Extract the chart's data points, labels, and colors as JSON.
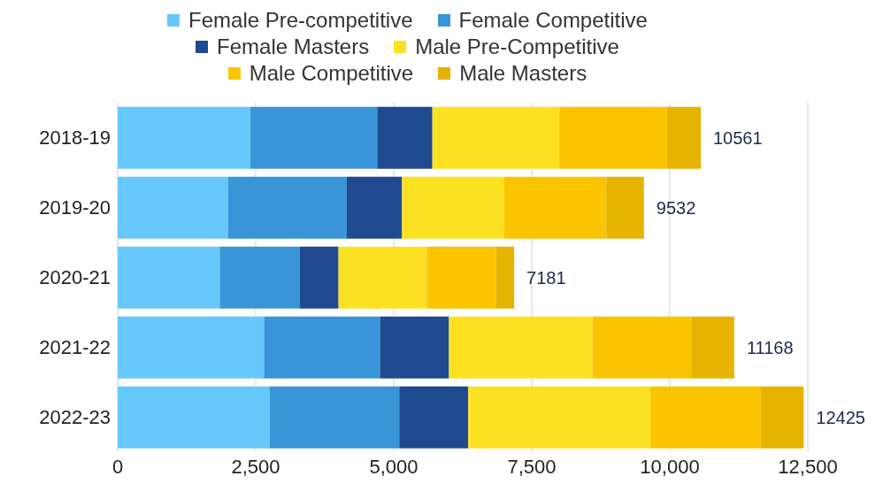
{
  "chart_data": {
    "type": "bar",
    "orientation": "horizontal",
    "stacked": true,
    "categories": [
      "2018-19",
      "2019-20",
      "2020-21",
      "2021-22",
      "2022-23"
    ],
    "series": [
      {
        "name": "Female Pre-competitive",
        "color": "#66c8fa",
        "values": [
          2400,
          2000,
          1850,
          2650,
          2750
        ]
      },
      {
        "name": "Female Competitive",
        "color": "#3a94d8",
        "values": [
          2300,
          2150,
          1450,
          2100,
          2350
        ]
      },
      {
        "name": "Female Masters",
        "color": "#1f4a8f",
        "values": [
          1000,
          1000,
          700,
          1250,
          1250
        ]
      },
      {
        "name": "Male Pre-Competitive",
        "color": "#fbe122",
        "values": [
          2300,
          1850,
          1600,
          2600,
          3300
        ]
      },
      {
        "name": "Male Competitive",
        "color": "#fbc400",
        "values": [
          1950,
          1850,
          1250,
          1800,
          2000
        ]
      },
      {
        "name": "Male Masters",
        "color": "#e6b300",
        "values": [
          611,
          682,
          331,
          768,
          775
        ]
      }
    ],
    "totals": [
      "10561",
      "9532",
      "7181",
      "11168",
      "12425"
    ],
    "xlim": [
      0,
      12500
    ],
    "xticks": [
      0,
      {
        "value": 2500,
        "label": "2,500"
      },
      {
        "value": 5000,
        "label": "5,000"
      },
      {
        "value": 7500,
        "label": "7,500"
      },
      {
        "value": 10000,
        "label": "10,000"
      },
      {
        "value": 12500,
        "label": "12,500"
      }
    ],
    "grid": "x",
    "legend": "top"
  }
}
